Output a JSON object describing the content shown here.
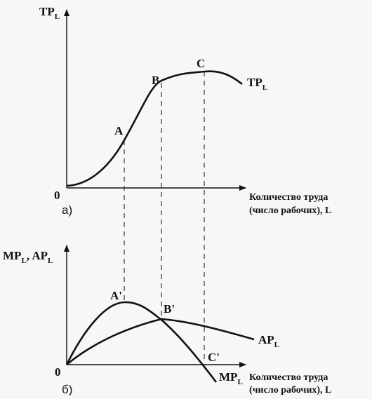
{
  "panel_a": {
    "y_axis": {
      "main": "TP",
      "sub": "L"
    },
    "origin": "0",
    "x_axis": {
      "line1": "Количество труда",
      "line2": "(число рабочих), L"
    },
    "panel_label": "а)",
    "points": {
      "a": "A",
      "b": "B",
      "c": "C"
    },
    "curve": {
      "main": "TP",
      "sub": "L"
    }
  },
  "panel_b": {
    "y_axis": {
      "mp": "MP",
      "mp_sub": "L",
      "sep": ", ",
      "ap": "AP",
      "ap_sub": "L"
    },
    "origin": "0",
    "x_axis": {
      "line1": "Количество труда",
      "line2": "(число рабочих), L"
    },
    "panel_label": "б)",
    "points": {
      "a": "A'",
      "b": "B'",
      "c": "C'"
    },
    "ap_curve": {
      "main": "AP",
      "sub": "L"
    },
    "mp_curve": {
      "main": "MP",
      "sub": "L"
    }
  },
  "colors": {
    "ink": "#111111",
    "background": "#f7f7f7"
  }
}
